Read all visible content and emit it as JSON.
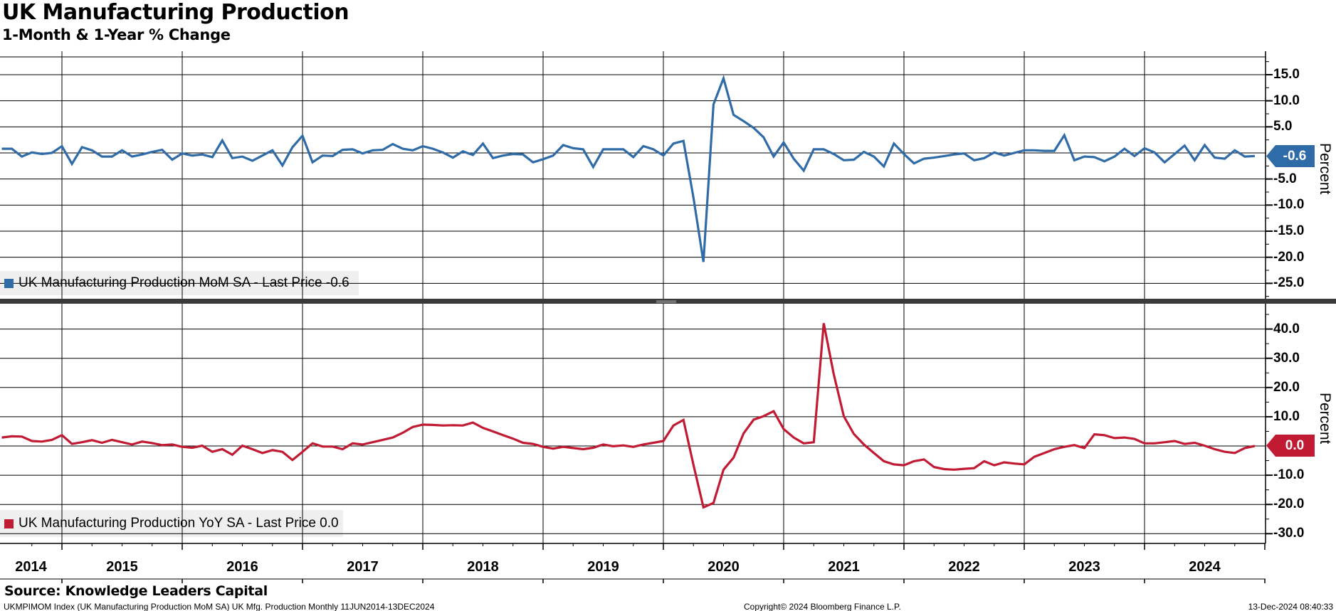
{
  "header": {
    "title": "UK Manufacturing Production",
    "subtitle": "1-Month & 1-Year % Change"
  },
  "colors": {
    "mom": "#2f6ba6",
    "yoy": "#c11a33",
    "grid": "#000000",
    "separator": "#3a3a3a",
    "separator_grip": "#9a9a9a",
    "legend_bg": "#efefef"
  },
  "x_axis": {
    "years": [
      "2014",
      "2015",
      "2016",
      "2017",
      "2018",
      "2019",
      "2020",
      "2021",
      "2022",
      "2023",
      "2024"
    ]
  },
  "footer": {
    "source": "Source: Knowledge Leaders Capital",
    "info_left": "UKMPIMOM Index (UK Manufacturing Production MoM SA) UK Mfg. Production  Monthly 11JUN2014-13DEC2024",
    "copyright": "Copyright© 2024 Bloomberg Finance L.P.",
    "timestamp": "13-Dec-2024 08:40:33"
  },
  "chart_data": [
    {
      "type": "line",
      "name": "UK Manufacturing Production MoM SA",
      "legend_label": "UK Manufacturing Production MoM SA - Last Price -0.6",
      "last_price": -0.6,
      "last_price_label": "-0.6",
      "color": "#2f6ba6",
      "ylabel": "Percent",
      "frequency": "monthly",
      "period_start": "2014-06",
      "period_end": "2024-11",
      "ylim": [
        -28.1,
        18.4
      ],
      "grid_values": [
        15,
        10,
        5,
        0,
        -5,
        -10,
        -15,
        -20,
        -25
      ],
      "ytick_values": [
        15,
        10,
        5,
        -5,
        -10,
        -15,
        -20,
        -25
      ],
      "ytick_labels": [
        "15.0",
        "10.0",
        "5.0",
        "-5.0",
        "-10.0",
        "-15.0",
        "-20.0",
        "-25.0"
      ],
      "values": [
        0.8,
        0.8,
        -0.7,
        0.1,
        -0.2,
        0.0,
        1.3,
        -2.1,
        1.1,
        0.5,
        -0.7,
        -0.7,
        0.5,
        -0.7,
        -0.3,
        0.2,
        0.6,
        -1.3,
        -0.1,
        -0.5,
        -0.3,
        -0.8,
        2.4,
        -1.0,
        -0.7,
        -1.5,
        -0.5,
        0.5,
        -2.4,
        1.1,
        3.3,
        -1.8,
        -0.5,
        -0.6,
        0.6,
        0.7,
        -0.1,
        0.5,
        0.6,
        1.7,
        0.8,
        0.5,
        1.3,
        0.8,
        0.1,
        -0.9,
        0.3,
        -0.4,
        1.8,
        -1.0,
        -0.5,
        -0.2,
        -0.3,
        -1.8,
        -1.2,
        -0.5,
        1.5,
        0.9,
        0.7,
        -2.7,
        0.7,
        0.7,
        0.7,
        -0.8,
        1.3,
        0.7,
        -0.5,
        1.8,
        2.3,
        -8.6,
        -20.9,
        9.3,
        14.3,
        7.3,
        6.1,
        4.8,
        3.0,
        -0.7,
        2.0,
        -1.1,
        -3.4,
        0.7,
        0.7,
        -0.2,
        -1.4,
        -1.3,
        0.2,
        -0.7,
        -2.6,
        1.8,
        -0.2,
        -2.0,
        -1.1,
        -0.9,
        -0.6,
        -0.3,
        -0.1,
        -1.4,
        -1.0,
        0.1,
        -0.5,
        0.0,
        0.5,
        0.5,
        0.4,
        0.4,
        3.4,
        -1.4,
        -0.7,
        -0.8,
        -1.6,
        -0.7,
        0.8,
        -0.6,
        0.9,
        0.1,
        -1.8,
        -0.2,
        1.4,
        -1.4,
        1.5,
        -0.9,
        -1.1,
        0.5,
        -0.7,
        -0.6
      ]
    },
    {
      "type": "line",
      "name": "UK Manufacturing Production YoY SA",
      "legend_label": "UK Manufacturing Production YoY SA - Last Price 0.0",
      "last_price": 0.0,
      "last_price_label": "0.0",
      "color": "#c11a33",
      "ylabel": "Percent",
      "frequency": "monthly",
      "period_start": "2014-06",
      "period_end": "2024-11",
      "ylim": [
        -33.3,
        48.9
      ],
      "grid_values": [
        40,
        30,
        20,
        10,
        0,
        -10,
        -20,
        -30
      ],
      "ytick_values": [
        40,
        30,
        20,
        10,
        -10,
        -20,
        -30
      ],
      "ytick_labels": [
        "40.0",
        "30.0",
        "20.0",
        "10.0",
        "-10.0",
        "-20.0",
        "-30.0"
      ],
      "values": [
        2.9,
        3.3,
        3.2,
        1.7,
        1.5,
        2.1,
        3.7,
        0.7,
        1.3,
        2.0,
        1.1,
        2.1,
        1.3,
        0.5,
        1.5,
        1.0,
        0.3,
        0.5,
        -0.3,
        -0.6,
        0.1,
        -2.0,
        -1.1,
        -3.0,
        0.1,
        -1.1,
        -2.4,
        -1.4,
        -2.0,
        -4.8,
        -2.0,
        0.9,
        -0.2,
        -0.2,
        -1.1,
        0.9,
        0.5,
        1.3,
        2.1,
        2.9,
        4.5,
        6.5,
        7.3,
        7.2,
        7.0,
        7.1,
        7.0,
        8.0,
        6.2,
        5.0,
        3.7,
        2.5,
        1.1,
        0.7,
        -0.3,
        -0.9,
        -0.3,
        -0.7,
        -1.1,
        -0.6,
        0.5,
        -0.1,
        0.2,
        -0.3,
        0.5,
        1.1,
        1.7,
        7.0,
        8.9,
        -6.5,
        -21.0,
        -19.5,
        -8.1,
        -4.0,
        4.3,
        9.0,
        10.2,
        11.9,
        5.8,
        2.9,
        0.9,
        1.3,
        42.0,
        24.5,
        10.2,
        4.1,
        0.5,
        -2.4,
        -5.2,
        -6.3,
        -6.6,
        -5.2,
        -4.6,
        -7.2,
        -7.9,
        -8.1,
        -7.8,
        -7.6,
        -5.2,
        -6.6,
        -5.6,
        -6.0,
        -6.3,
        -3.7,
        -2.4,
        -1.1,
        -0.3,
        0.3,
        -0.7,
        4.0,
        3.7,
        2.7,
        2.9,
        2.4,
        0.9,
        0.9,
        1.3,
        1.7,
        0.7,
        1.1,
        0.1,
        -1.1,
        -2.0,
        -2.4,
        -0.7,
        0.0
      ]
    }
  ]
}
